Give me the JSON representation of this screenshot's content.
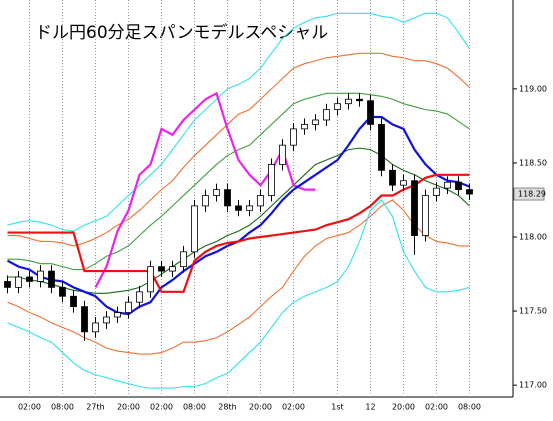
{
  "chart_data": {
    "type": "candlestick",
    "title": "ドル円60分足スパンモデルスペシャル",
    "categories": [
      null,
      null,
      "02:00",
      null,
      null,
      "08:00",
      null,
      null,
      "27th",
      null,
      null,
      "20:00",
      null,
      null,
      "02:00",
      null,
      null,
      "08:00",
      null,
      null,
      "28th",
      null,
      null,
      "20:00",
      null,
      null,
      "02:00",
      null,
      null,
      null,
      "1st",
      null,
      null,
      "12",
      null,
      null,
      "20:00",
      null,
      null,
      "02:00",
      null,
      null,
      "08:00"
    ],
    "open": [
      117.7,
      117.66,
      117.73,
      117.7,
      117.77,
      117.66,
      117.6,
      117.53,
      117.36,
      117.42,
      117.46,
      117.49,
      117.56,
      117.63,
      117.8,
      117.77,
      117.8,
      117.9,
      118.21,
      118.28,
      118.32,
      118.21,
      118.18,
      118.21,
      118.28,
      118.49,
      118.62,
      118.73,
      118.76,
      118.79,
      118.86,
      118.9,
      118.93,
      118.92,
      118.76,
      118.45,
      118.35,
      118.38,
      118.01,
      118.28,
      118.33,
      118.37,
      118.32
    ],
    "high": [
      117.74,
      117.77,
      117.77,
      117.81,
      117.81,
      117.7,
      117.64,
      117.57,
      117.46,
      117.5,
      117.53,
      117.6,
      117.67,
      117.84,
      117.84,
      117.84,
      117.94,
      118.25,
      118.32,
      118.36,
      118.36,
      118.25,
      118.25,
      118.32,
      118.53,
      118.66,
      118.77,
      118.8,
      118.83,
      118.9,
      118.94,
      118.97,
      118.97,
      118.96,
      118.8,
      118.49,
      118.42,
      118.42,
      118.32,
      118.37,
      118.41,
      118.41,
      118.36
    ],
    "low": [
      117.62,
      117.62,
      117.66,
      117.66,
      117.62,
      117.56,
      117.49,
      117.3,
      117.32,
      117.38,
      117.42,
      117.45,
      117.52,
      117.59,
      117.73,
      117.73,
      117.76,
      117.86,
      118.17,
      118.24,
      118.17,
      118.14,
      118.14,
      118.17,
      118.24,
      118.45,
      118.58,
      118.69,
      118.72,
      118.75,
      118.82,
      118.86,
      118.88,
      118.72,
      118.41,
      118.31,
      118.31,
      117.88,
      117.97,
      118.24,
      118.29,
      118.28,
      118.25
    ],
    "close": [
      117.66,
      117.73,
      117.7,
      117.77,
      117.66,
      117.6,
      117.53,
      117.36,
      117.42,
      117.46,
      117.49,
      117.56,
      117.63,
      117.8,
      117.77,
      117.8,
      117.9,
      118.21,
      118.28,
      118.32,
      118.21,
      118.18,
      118.21,
      118.28,
      118.49,
      118.62,
      118.73,
      118.76,
      118.79,
      118.86,
      118.9,
      118.93,
      118.92,
      118.76,
      118.45,
      118.35,
      118.38,
      118.01,
      118.28,
      118.33,
      118.37,
      118.32,
      118.29
    ],
    "up_color": "#ffffff",
    "down_color": "#000000",
    "series": [
      {
        "color": "#33e0f0",
        "values": [
          118.08,
          118.1,
          118.11,
          118.1,
          118.08,
          118.05,
          118.04,
          118.08,
          118.11,
          118.14,
          118.21,
          118.28,
          118.35,
          118.42,
          118.49,
          118.59,
          118.69,
          118.79,
          118.86,
          118.93,
          119.0,
          119.03,
          119.07,
          119.14,
          119.24,
          119.34,
          119.41,
          119.45,
          119.48,
          119.49,
          119.51,
          119.51,
          119.51,
          119.51,
          119.49,
          119.48,
          119.45,
          119.48,
          119.51,
          119.51,
          119.48,
          119.38,
          119.27
        ]
      },
      {
        "color": "#f07030",
        "values": [
          118.01,
          118.01,
          117.99,
          117.97,
          117.97,
          117.96,
          117.94,
          117.96,
          117.99,
          118.03,
          118.08,
          118.12,
          118.18,
          118.25,
          118.32,
          118.38,
          118.47,
          118.55,
          118.62,
          118.69,
          118.76,
          118.83,
          118.86,
          118.93,
          119.0,
          119.07,
          119.14,
          119.17,
          119.19,
          119.21,
          119.22,
          119.23,
          119.24,
          119.24,
          119.24,
          119.22,
          119.21,
          119.19,
          119.19,
          119.17,
          119.14,
          119.08,
          119.01
        ]
      },
      {
        "color": "#40a040",
        "values": [
          117.85,
          117.85,
          117.84,
          117.82,
          117.82,
          117.8,
          117.78,
          117.78,
          117.82,
          117.87,
          117.9,
          117.94,
          118.01,
          118.08,
          118.14,
          118.21,
          118.28,
          118.35,
          118.42,
          118.49,
          118.55,
          118.59,
          118.62,
          118.69,
          118.76,
          118.83,
          118.9,
          118.93,
          118.95,
          118.97,
          118.97,
          118.97,
          118.97,
          118.96,
          118.95,
          118.93,
          118.9,
          118.88,
          118.86,
          118.85,
          118.83,
          118.78,
          118.73
        ]
      },
      {
        "color": "#1a6a1a",
        "values": [
          117.73,
          117.73,
          117.71,
          117.7,
          117.68,
          117.66,
          117.64,
          117.63,
          117.62,
          117.62,
          117.63,
          117.64,
          117.66,
          117.7,
          117.75,
          117.8,
          117.85,
          117.9,
          117.94,
          117.97,
          118.01,
          118.04,
          118.08,
          118.14,
          118.21,
          118.28,
          118.35,
          118.42,
          118.49,
          118.52,
          118.55,
          118.59,
          118.6,
          118.59,
          118.55,
          118.49,
          118.45,
          118.42,
          118.38,
          118.35,
          118.32,
          118.28,
          118.21
        ]
      },
      {
        "color": "#f07030",
        "values": [
          117.56,
          117.53,
          117.49,
          117.46,
          117.42,
          117.39,
          117.36,
          117.32,
          117.29,
          117.25,
          117.23,
          117.22,
          117.21,
          117.21,
          117.22,
          117.25,
          117.29,
          117.29,
          117.3,
          117.32,
          117.36,
          117.41,
          117.46,
          117.53,
          117.6,
          117.66,
          117.77,
          117.87,
          117.94,
          117.99,
          118.01,
          118.03,
          118.08,
          118.14,
          118.21,
          118.25,
          118.18,
          118.08,
          118.01,
          117.97,
          117.96,
          117.94,
          117.94
        ]
      },
      {
        "color": "#33e0f0",
        "values": [
          117.42,
          117.39,
          117.36,
          117.32,
          117.29,
          117.22,
          117.15,
          117.1,
          117.07,
          117.05,
          117.03,
          117.01,
          116.99,
          116.98,
          116.98,
          116.98,
          116.99,
          116.99,
          117.01,
          117.05,
          117.08,
          117.15,
          117.22,
          117.29,
          117.39,
          117.49,
          117.56,
          117.6,
          117.63,
          117.66,
          117.7,
          117.8,
          117.97,
          118.18,
          118.25,
          118.14,
          117.9,
          117.77,
          117.66,
          117.63,
          117.63,
          117.64,
          117.66
        ]
      },
      {
        "color": "#ee22ee",
        "values": [
          null,
          null,
          null,
          null,
          null,
          null,
          null,
          null,
          117.66,
          117.8,
          118.04,
          118.18,
          118.42,
          118.49,
          118.73,
          118.69,
          118.79,
          118.86,
          118.93,
          118.97,
          118.73,
          118.52,
          118.42,
          118.35,
          118.45,
          118.59,
          118.35,
          118.32,
          118.32,
          null,
          null,
          null,
          null,
          null,
          null,
          null,
          null,
          null,
          null,
          null,
          null,
          null,
          null
        ]
      },
      {
        "color": "#1010e0",
        "values": [
          117.84,
          117.8,
          117.78,
          117.73,
          117.71,
          117.7,
          117.66,
          117.63,
          117.6,
          117.53,
          117.49,
          117.48,
          117.53,
          117.56,
          117.66,
          117.71,
          117.77,
          117.82,
          117.87,
          117.9,
          117.94,
          117.97,
          118.03,
          118.08,
          118.16,
          118.25,
          118.32,
          118.37,
          118.42,
          118.47,
          118.52,
          118.62,
          118.73,
          118.81,
          118.81,
          118.76,
          118.73,
          118.59,
          118.49,
          118.42,
          118.38,
          118.37,
          118.34
        ]
      },
      {
        "color": "#ee1010",
        "values": [
          118.03,
          118.03,
          118.03,
          118.03,
          118.03,
          118.03,
          118.03,
          117.77,
          117.77,
          117.77,
          117.77,
          117.77,
          117.77,
          117.77,
          117.63,
          117.63,
          117.63,
          117.84,
          117.9,
          117.94,
          117.96,
          117.97,
          117.99,
          118.0,
          118.01,
          118.02,
          118.03,
          118.04,
          118.05,
          118.08,
          118.1,
          118.12,
          118.16,
          118.21,
          118.28,
          118.28,
          118.32,
          118.35,
          118.4,
          118.42,
          118.42,
          118.42,
          118.42
        ]
      }
    ],
    "ylim": [
      116.92,
      119.6
    ],
    "yticks": [
      {
        "value": 117,
        "label": "117.00"
      },
      {
        "value": 117.5,
        "label": "117.50"
      },
      {
        "value": 118,
        "label": "118.00"
      },
      {
        "value": 118.5,
        "label": "118.50"
      },
      {
        "value": 119,
        "label": "119.00"
      }
    ],
    "last_price": {
      "value": 118.29,
      "label": "118.29"
    },
    "vgrid": true
  }
}
